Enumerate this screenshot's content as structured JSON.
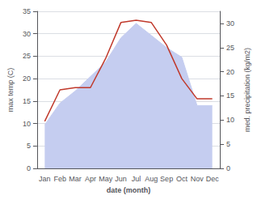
{
  "chart_data": {
    "type": "line",
    "categories": [
      "Jan",
      "Feb",
      "Mar",
      "Apr",
      "May",
      "Jun",
      "Jul",
      "Aug",
      "Sep",
      "Oct",
      "Nov",
      "Dec"
    ],
    "xlabel": "date (month)",
    "ylabel": "max temp (C)",
    "y2label": "med. precipitation (kg/m2)",
    "series": [
      {
        "type": "area",
        "color": "#c5cdf0",
        "axis": "y2",
        "values": [
          9.0,
          13.5,
          16.0,
          19.0,
          22.0,
          27.0,
          30.0,
          27.5,
          25.0,
          23.0,
          13.0,
          13.0
        ]
      },
      {
        "type": "line",
        "color": "#c0392b",
        "values": [
          10.5,
          17.5,
          18.0,
          18.0,
          24.5,
          32.5,
          33.0,
          32.5,
          27.5,
          20.0,
          15.5,
          15.5
        ]
      }
    ],
    "ylim": [
      0,
      35
    ],
    "yticks": [
      0,
      5,
      10,
      15,
      20,
      25,
      30,
      35
    ],
    "y2lim": [
      0,
      32.5
    ],
    "y2ticks": [
      0,
      5,
      10,
      15,
      20,
      25,
      30
    ],
    "grid": true
  }
}
